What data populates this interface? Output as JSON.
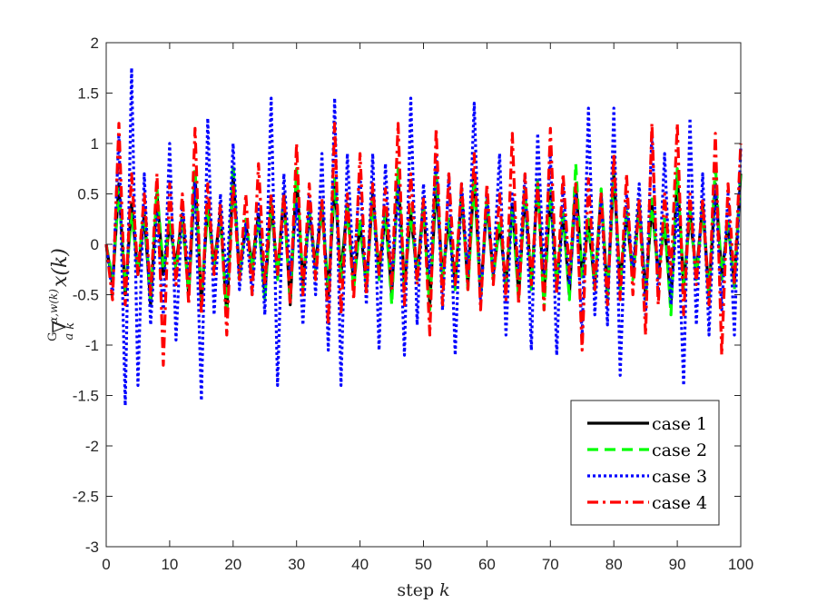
{
  "chart_data": {
    "type": "line",
    "title": "",
    "xlabel": "step k",
    "ylabel": "G a∇k α,w(k) x(k)",
    "xlim": [
      0,
      100
    ],
    "ylim": [
      -3,
      2
    ],
    "xticks": [
      "0",
      "10",
      "20",
      "30",
      "40",
      "50",
      "60",
      "70",
      "80",
      "90",
      "100"
    ],
    "yticks": [
      "-3",
      "-2.5",
      "-2",
      "-1.5",
      "-1",
      "-0.5",
      "0",
      "0.5",
      "1",
      "1.5",
      "2"
    ],
    "legend_position": "bottom-right",
    "grid": false,
    "series": [
      {
        "name": "case 1",
        "color": "#000000",
        "dash": "solid",
        "y": [
          0.0,
          -0.4,
          0.6,
          -0.5,
          0.4,
          -0.3,
          0.3,
          -0.6,
          0.5,
          -0.3,
          0.2,
          -0.2,
          0.3,
          -0.5,
          0.7,
          -0.6,
          0.4,
          -0.2,
          0.3,
          -0.7,
          0.7,
          -0.3,
          0.2,
          -0.2,
          0.3,
          -0.5,
          0.4,
          -0.3,
          0.5,
          -0.6,
          0.7,
          -0.4,
          0.3,
          -0.2,
          0.4,
          -0.5,
          0.6,
          -0.3,
          0.4,
          -0.4,
          0.2,
          -0.4,
          0.5,
          -0.3,
          0.3,
          -0.5,
          0.7,
          -0.4,
          0.3,
          -0.3,
          0.4,
          -0.6,
          0.6,
          -0.3,
          0.2,
          -0.4,
          0.5,
          -0.4,
          0.7,
          -0.5,
          0.4,
          -0.3,
          0.2,
          -0.4,
          0.4,
          -0.5,
          0.5,
          -0.4,
          0.6,
          -0.5,
          0.5,
          -0.4,
          0.3,
          -0.5,
          0.6,
          -0.3,
          0.2,
          -0.4,
          0.5,
          -0.5,
          0.7,
          -0.4,
          0.3,
          -0.3,
          0.4,
          -0.5,
          0.4,
          -0.3,
          0.2,
          -0.6,
          0.7,
          -0.4,
          0.3,
          -0.3,
          0.4,
          -0.5,
          0.6,
          -0.3,
          0.2,
          -0.4,
          0.7
        ]
      },
      {
        "name": "case 2",
        "color": "#00ff00",
        "dash": "dashed",
        "y": [
          0.0,
          -0.35,
          0.55,
          -0.45,
          0.3,
          -0.25,
          0.35,
          -0.55,
          0.55,
          -0.25,
          0.25,
          -0.25,
          0.25,
          -0.45,
          0.75,
          -0.55,
          0.35,
          -0.25,
          0.25,
          -0.65,
          0.8,
          -0.35,
          0.25,
          -0.25,
          0.25,
          -0.55,
          0.45,
          -0.35,
          0.45,
          -0.55,
          0.75,
          -0.45,
          0.35,
          -0.25,
          0.35,
          -0.45,
          0.65,
          -0.35,
          0.35,
          -0.45,
          0.25,
          -0.45,
          0.45,
          -0.35,
          0.35,
          -0.6,
          0.75,
          -0.45,
          0.35,
          -0.35,
          0.35,
          -0.65,
          0.75,
          -0.35,
          0.25,
          -0.45,
          0.55,
          -0.45,
          0.65,
          -0.55,
          0.45,
          -0.35,
          0.25,
          -0.45,
          0.35,
          -0.55,
          0.55,
          -0.45,
          0.65,
          -0.65,
          0.55,
          -0.45,
          0.35,
          -0.55,
          0.8,
          -0.35,
          0.25,
          -0.45,
          0.55,
          -0.55,
          0.75,
          -0.45,
          0.35,
          -0.35,
          0.35,
          -0.55,
          0.45,
          -0.35,
          0.25,
          -0.7,
          0.75,
          -0.45,
          0.35,
          -0.35,
          0.35,
          -0.55,
          0.8,
          -0.35,
          0.25,
          -0.45,
          0.75
        ]
      },
      {
        "name": "case 3",
        "color": "#0000ff",
        "dash": "dotted",
        "y": [
          0.0,
          -0.5,
          1.1,
          -1.6,
          1.75,
          -1.4,
          0.7,
          -0.8,
          0.3,
          -0.7,
          1.0,
          -0.95,
          0.4,
          -0.3,
          0.6,
          -1.55,
          1.25,
          -0.7,
          0.5,
          -0.4,
          1.0,
          -0.45,
          0.2,
          -0.5,
          0.4,
          -0.7,
          1.45,
          -1.4,
          0.7,
          -0.3,
          0.4,
          -0.8,
          0.5,
          -0.5,
          0.9,
          -1.05,
          1.45,
          -1.4,
          0.9,
          -0.3,
          0.7,
          -0.6,
          0.9,
          -1.05,
          0.8,
          -0.4,
          0.6,
          -1.1,
          1.45,
          -0.8,
          0.6,
          -0.3,
          0.9,
          -0.65,
          0.7,
          -1.1,
          0.6,
          -0.3,
          1.4,
          -0.6,
          0.5,
          -0.3,
          0.9,
          -0.9,
          0.5,
          -0.3,
          0.7,
          -1.05,
          1.1,
          -0.3,
          0.9,
          -1.1,
          0.6,
          -0.4,
          0.5,
          -0.9,
          1.35,
          -0.7,
          0.5,
          -0.8,
          1.35,
          -1.3,
          0.5,
          -0.3,
          0.6,
          -0.7,
          1.1,
          -0.5,
          0.9,
          -0.6,
          0.4,
          -1.4,
          1.25,
          -0.8,
          0.7,
          -0.9,
          0.6,
          -0.65,
          0.5,
          -0.9,
          0.95
        ]
      },
      {
        "name": "case 4",
        "color": "#ff0000",
        "dash": "dashdot",
        "y": [
          0.0,
          -0.55,
          1.2,
          -0.6,
          0.7,
          -0.3,
          0.5,
          -0.5,
          0.7,
          -1.2,
          0.6,
          -0.4,
          0.5,
          -0.6,
          1.15,
          -0.7,
          0.6,
          -0.3,
          0.4,
          -0.9,
          0.6,
          -0.35,
          0.5,
          -0.5,
          0.8,
          -0.4,
          0.5,
          -0.3,
          0.5,
          -0.6,
          1.0,
          -0.5,
          0.6,
          -0.35,
          0.45,
          -0.8,
          1.2,
          -0.7,
          0.5,
          -0.55,
          0.9,
          -0.5,
          0.6,
          -0.3,
          0.55,
          -0.45,
          1.2,
          -0.6,
          0.7,
          -0.4,
          0.45,
          -0.9,
          1.15,
          -0.6,
          0.7,
          -0.4,
          0.6,
          -0.45,
          0.9,
          -0.65,
          0.6,
          -0.4,
          0.5,
          -0.55,
          1.1,
          -0.6,
          0.7,
          -0.4,
          0.6,
          -0.65,
          1.15,
          -0.5,
          0.7,
          -0.3,
          0.6,
          -1.05,
          0.65,
          -0.45,
          0.5,
          -0.6,
          0.9,
          -0.55,
          0.7,
          -0.5,
          0.45,
          -0.9,
          1.2,
          -0.6,
          0.5,
          -0.3,
          1.2,
          -0.7,
          0.5,
          -0.4,
          0.45,
          -0.6,
          1.1,
          -1.1,
          0.6,
          -0.4,
          1.0
        ]
      }
    ]
  }
}
